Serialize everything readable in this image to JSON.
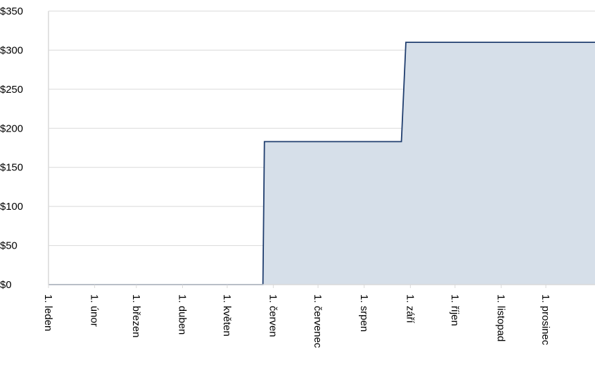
{
  "chart_data": {
    "type": "area",
    "x": [
      0,
      144,
      145,
      237,
      240,
      367
    ],
    "series": [
      {
        "color": "#1f3d6e",
        "fill": "#d6dfe9",
        "values": [
          0,
          0,
          183,
          183,
          310,
          310
        ]
      }
    ],
    "xlim": [
      0,
      367
    ],
    "xticks": [
      {
        "value": 0,
        "label": "1. leden"
      },
      {
        "value": 31,
        "label": "1. únor"
      },
      {
        "value": 59,
        "label": "1. březen"
      },
      {
        "value": 90,
        "label": "1. duben"
      },
      {
        "value": 120,
        "label": "1. květen"
      },
      {
        "value": 151,
        "label": "1. červen"
      },
      {
        "value": 181,
        "label": "1. červenec"
      },
      {
        "value": 212,
        "label": "1. srpen"
      },
      {
        "value": 243,
        "label": "1. září"
      },
      {
        "value": 273,
        "label": "1. říjen"
      },
      {
        "value": 304,
        "label": "1. listopad"
      },
      {
        "value": 334,
        "label": "1. prosinec"
      }
    ],
    "ylim": [
      0,
      350
    ],
    "yticks": [
      {
        "value": 0,
        "label": "$0"
      },
      {
        "value": 50,
        "label": "$50"
      },
      {
        "value": 100,
        "label": "$100"
      },
      {
        "value": 150,
        "label": "$150"
      },
      {
        "value": 200,
        "label": "$200"
      },
      {
        "value": 250,
        "label": "$250"
      },
      {
        "value": 300,
        "label": "$300"
      },
      {
        "value": 350,
        "label": "$350"
      }
    ],
    "grid": true
  }
}
